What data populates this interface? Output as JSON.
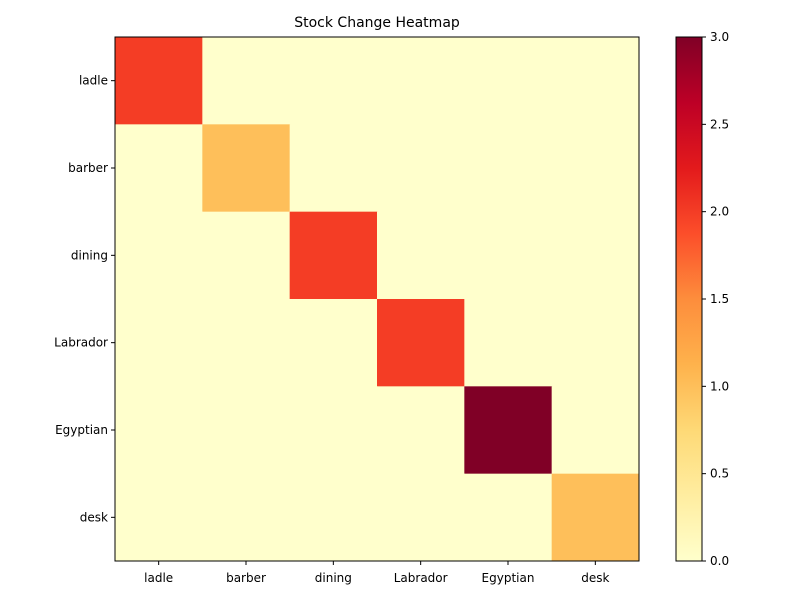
{
  "chart_data": {
    "type": "heatmap",
    "title": "Stock Change Heatmap",
    "xlabel": "",
    "ylabel": "",
    "x_categories": [
      "ladle",
      "barber",
      "dining",
      "Labrador",
      "Egyptian",
      "desk"
    ],
    "y_categories": [
      "ladle",
      "barber",
      "dining",
      "Labrador",
      "Egyptian",
      "desk"
    ],
    "values": [
      [
        2,
        0,
        0,
        0,
        0,
        0
      ],
      [
        0,
        1,
        0,
        0,
        0,
        0
      ],
      [
        0,
        0,
        2,
        0,
        0,
        0
      ],
      [
        0,
        0,
        0,
        2,
        0,
        0
      ],
      [
        0,
        0,
        0,
        0,
        3,
        0
      ],
      [
        0,
        0,
        0,
        0,
        0,
        1
      ]
    ],
    "colormap": "YlOrRd",
    "color_range": [
      0,
      3
    ],
    "colorbar_ticks": [
      "0.0",
      "0.5",
      "1.0",
      "1.5",
      "2.0",
      "2.5",
      "3.0"
    ],
    "grid": false,
    "legend": "colorbar-right"
  }
}
